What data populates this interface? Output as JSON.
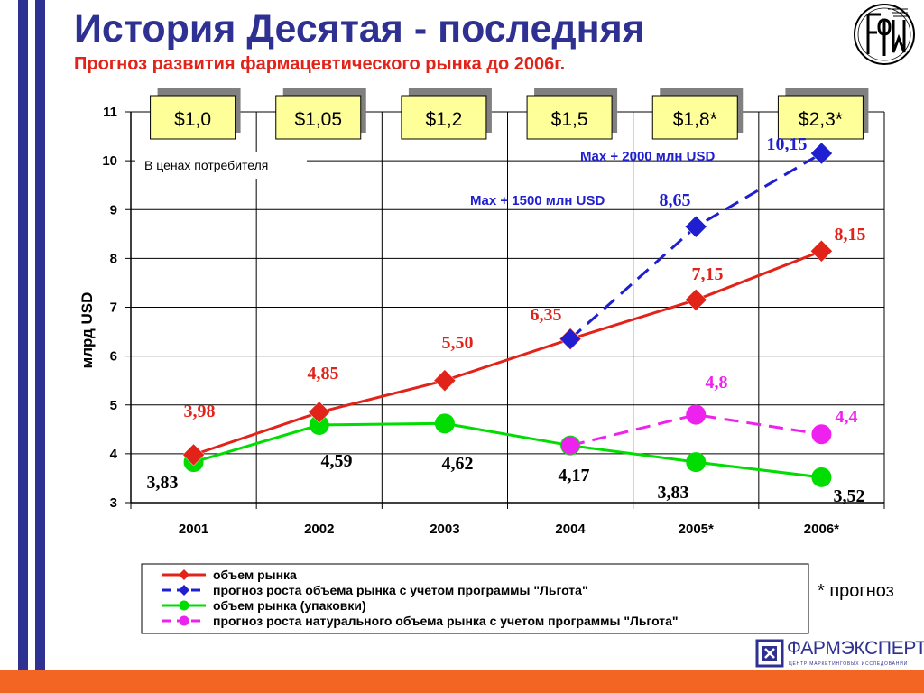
{
  "slide": {
    "title": "История Десятая - последняя",
    "subtitle": "Прогноз развития фармацевтического рынка до 2006г.",
    "footnote": "* прогноз",
    "note_box": "В ценах потребителя",
    "annotation_max2000": "Max + 2000 млн USD",
    "annotation_max1500": "Max + 1500 млн USD",
    "brand_name": "ФАРМЭКСПЕРТ",
    "brand_tagline": "ЦЕНТР МАРКЕТИНГОВЫХ ИССЛЕДОВАНИЙ",
    "corner_logo_text": "ФАРМ"
  },
  "colors": {
    "title": "#2e3192",
    "subtitle": "#e2231a",
    "stripe_blue": "#2e3192",
    "band_orange": "#f26522",
    "price_box": "#ffff99"
  },
  "chart_data": {
    "type": "line",
    "ylabel": "млрд USD",
    "ylim": [
      3,
      11
    ],
    "yticks": [
      "3",
      "4",
      "5",
      "6",
      "7",
      "8",
      "9",
      "10",
      "11"
    ],
    "categories": [
      "2001",
      "2002",
      "2003",
      "2004",
      "2005*",
      "2006*"
    ],
    "price_boxes": [
      "$1,0",
      "$1,05",
      "$1,2",
      "$1,5",
      "$1,8*",
      "$2,3*"
    ],
    "grid": true,
    "legend_position": "bottom",
    "series": [
      {
        "name": "объем рынка",
        "color": "#e2231a",
        "marker": "diamond",
        "dash": false,
        "values": [
          3.98,
          4.85,
          5.5,
          6.35,
          7.15,
          8.15
        ],
        "labels": [
          "3,98",
          "4,85",
          "5,50",
          "6,35",
          "7,15",
          "8,15"
        ]
      },
      {
        "name": "прогноз роста объема рынка с учетом программы \"Льгота\"",
        "color": "#1f1fd1",
        "marker": "diamond",
        "dash": true,
        "values": [
          null,
          null,
          null,
          6.35,
          8.65,
          10.15
        ],
        "labels": [
          "",
          "",
          "",
          "",
          "8,65",
          "10,15"
        ]
      },
      {
        "name": "объем рынка (упаковки)",
        "color": "#00dd00",
        "marker": "circle",
        "dash": false,
        "values": [
          3.83,
          4.59,
          4.62,
          4.17,
          3.83,
          3.52
        ],
        "labels": [
          "3,83",
          "4,59",
          "4,62",
          "4,17",
          "3,83",
          "3,52"
        ]
      },
      {
        "name": "прогноз роста натурального объема рынка с учетом программы \"Льгота\"",
        "color": "#ee22ee",
        "marker": "circle",
        "dash": true,
        "values": [
          null,
          null,
          null,
          4.17,
          4.8,
          4.4
        ],
        "labels": [
          "",
          "",
          "",
          "",
          "4,8",
          "4,4"
        ]
      }
    ]
  }
}
